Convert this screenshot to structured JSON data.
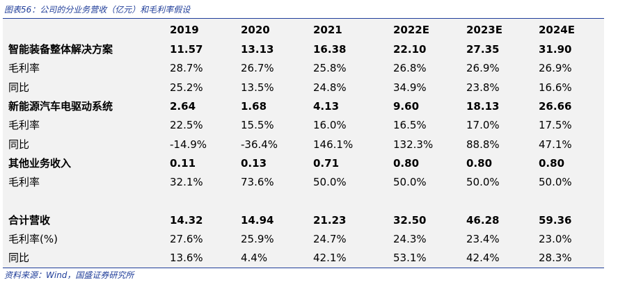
{
  "title": "图表56：公司的分业务营收（亿元）和毛利率假设",
  "source": "资料来源：Wind，国盛证券研究所",
  "columns": [
    "2019",
    "2020",
    "2021",
    "2022E",
    "2023E",
    "2024E"
  ],
  "rows": [
    {
      "label": "智能装备整体解决方案",
      "bold": true,
      "values": [
        "11.57",
        "13.13",
        "16.38",
        "22.10",
        "27.35",
        "31.90"
      ]
    },
    {
      "label": "毛利率",
      "bold": false,
      "values": [
        "28.7%",
        "26.7%",
        "25.8%",
        "26.8%",
        "26.9%",
        "26.9%"
      ]
    },
    {
      "label": "同比",
      "bold": false,
      "values": [
        "25.2%",
        "13.5%",
        "24.8%",
        "34.9%",
        "23.8%",
        "16.6%"
      ]
    },
    {
      "label": "新能源汽车电驱动系统",
      "bold": true,
      "values": [
        "2.64",
        "1.68",
        "4.13",
        "9.60",
        "18.13",
        "26.66"
      ]
    },
    {
      "label": "毛利率",
      "bold": false,
      "values": [
        "22.5%",
        "15.5%",
        "16.0%",
        "16.5%",
        "17.0%",
        "17.5%"
      ]
    },
    {
      "label": "同比",
      "bold": false,
      "values": [
        "-14.9%",
        "-36.4%",
        "146.1%",
        "132.3%",
        "88.8%",
        "47.1%"
      ]
    },
    {
      "label": "其他业务收入",
      "bold": true,
      "values": [
        "0.11",
        "0.13",
        "0.71",
        "0.80",
        "0.80",
        "0.80"
      ]
    },
    {
      "label": "毛利率",
      "bold": false,
      "values": [
        "32.1%",
        "73.6%",
        "50.0%",
        "50.0%",
        "50.0%",
        "50.0%"
      ]
    },
    {
      "label": "",
      "bold": false,
      "values": [
        "",
        "",
        "",
        "",
        "",
        ""
      ]
    },
    {
      "label": "合计营收",
      "bold": true,
      "values": [
        "14.32",
        "14.94",
        "21.23",
        "32.50",
        "46.28",
        "59.36"
      ]
    },
    {
      "label": "毛利率(%)",
      "bold": false,
      "values": [
        "27.6%",
        "25.9%",
        "24.7%",
        "24.3%",
        "23.4%",
        "23.0%"
      ]
    },
    {
      "label": "同比",
      "bold": false,
      "values": [
        "13.6%",
        "4.4%",
        "42.1%",
        "53.1%",
        "42.4%",
        "28.3%"
      ]
    }
  ]
}
